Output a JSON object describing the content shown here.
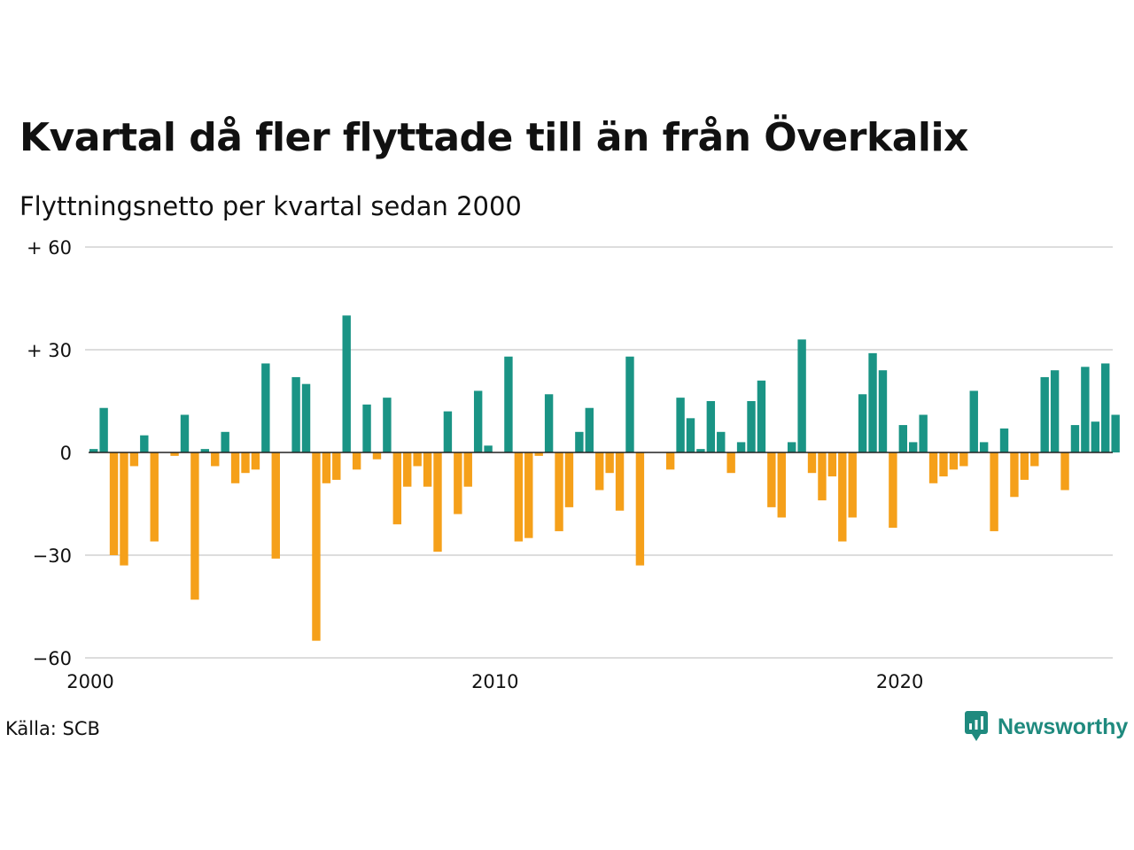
{
  "title": "Kvartal då fler flyttade till än från Överkalix",
  "subtitle": "Flyttningsnetto per kvartal sedan 2000",
  "source": "Källa: SCB",
  "brand": "Newsworthy",
  "colors": {
    "positive": "#1a9485",
    "negative": "#f5a01a",
    "gridline": "#dddddd",
    "brand": "#1f8a7e"
  },
  "chart_data": {
    "type": "bar",
    "title": "Kvartal då fler flyttade till än från Överkalix",
    "subtitle": "Flyttningsnetto per kvartal sedan 2000",
    "ylim": [
      -60,
      60
    ],
    "y_ticks": [
      {
        "value": 60,
        "label": "+ 60"
      },
      {
        "value": 30,
        "label": "+ 30"
      },
      {
        "value": 0,
        "label": "0"
      },
      {
        "value": -30,
        "label": "−30"
      },
      {
        "value": -60,
        "label": "−60"
      }
    ],
    "x_ticks": [
      {
        "value": "2000-Q1",
        "label": "2000"
      },
      {
        "value": "2010-Q1",
        "label": "2010"
      },
      {
        "value": "2020-Q1",
        "label": "2020"
      }
    ],
    "grid": true,
    "categories": [
      "2000-Q1",
      "2000-Q2",
      "2000-Q3",
      "2000-Q4",
      "2001-Q1",
      "2001-Q2",
      "2001-Q3",
      "2001-Q4",
      "2002-Q1",
      "2002-Q2",
      "2002-Q3",
      "2002-Q4",
      "2003-Q1",
      "2003-Q2",
      "2003-Q3",
      "2003-Q4",
      "2004-Q1",
      "2004-Q2",
      "2004-Q3",
      "2004-Q4",
      "2005-Q1",
      "2005-Q2",
      "2005-Q3",
      "2005-Q4",
      "2006-Q1",
      "2006-Q2",
      "2006-Q3",
      "2006-Q4",
      "2007-Q1",
      "2007-Q2",
      "2007-Q3",
      "2007-Q4",
      "2008-Q1",
      "2008-Q2",
      "2008-Q3",
      "2008-Q4",
      "2009-Q1",
      "2009-Q2",
      "2009-Q3",
      "2009-Q4",
      "2010-Q1",
      "2010-Q2",
      "2010-Q3",
      "2010-Q4",
      "2011-Q1",
      "2011-Q2",
      "2011-Q3",
      "2011-Q4",
      "2012-Q1",
      "2012-Q2",
      "2012-Q3",
      "2012-Q4",
      "2013-Q1",
      "2013-Q2",
      "2013-Q3",
      "2013-Q4",
      "2014-Q1",
      "2014-Q2",
      "2014-Q3",
      "2014-Q4",
      "2015-Q1",
      "2015-Q2",
      "2015-Q3",
      "2015-Q4",
      "2016-Q1",
      "2016-Q2",
      "2016-Q3",
      "2016-Q4",
      "2017-Q1",
      "2017-Q2",
      "2017-Q3",
      "2017-Q4",
      "2018-Q1",
      "2018-Q2",
      "2018-Q3",
      "2018-Q4",
      "2019-Q1",
      "2019-Q2",
      "2019-Q3",
      "2019-Q4",
      "2020-Q1",
      "2020-Q2",
      "2020-Q3",
      "2020-Q4",
      "2021-Q1",
      "2021-Q2",
      "2021-Q3",
      "2021-Q4",
      "2022-Q1",
      "2022-Q2",
      "2022-Q3",
      "2022-Q4",
      "2023-Q1",
      "2023-Q2",
      "2023-Q3",
      "2023-Q4",
      "2024-Q1",
      "2024-Q2",
      "2024-Q3",
      "2024-Q4",
      "2025-Q1",
      "2025-Q2",
      "2025-Q3"
    ],
    "values": [
      1,
      13,
      -30,
      -33,
      -4,
      5,
      -26,
      0,
      -1,
      11,
      -43,
      1,
      -4,
      6,
      -9,
      -6,
      -5,
      26,
      -31,
      0,
      22,
      20,
      -55,
      -9,
      -8,
      40,
      -5,
      14,
      -2,
      16,
      -21,
      -10,
      -4,
      -10,
      -29,
      12,
      -18,
      -10,
      18,
      2,
      0,
      28,
      -26,
      -25,
      -1,
      17,
      -23,
      -16,
      6,
      13,
      -11,
      -6,
      -17,
      28,
      -33,
      0,
      0,
      -5,
      16,
      10,
      1,
      15,
      6,
      -6,
      3,
      15,
      21,
      -16,
      -19,
      3,
      33,
      -6,
      -14,
      -7,
      -26,
      -19,
      17,
      29,
      24,
      -22,
      8,
      3,
      11,
      -9,
      -7,
      -5,
      -4,
      18,
      3,
      -23,
      7,
      -13,
      -8,
      -4,
      22,
      24,
      -11,
      8,
      25,
      9,
      26,
      11,
      0
    ]
  }
}
